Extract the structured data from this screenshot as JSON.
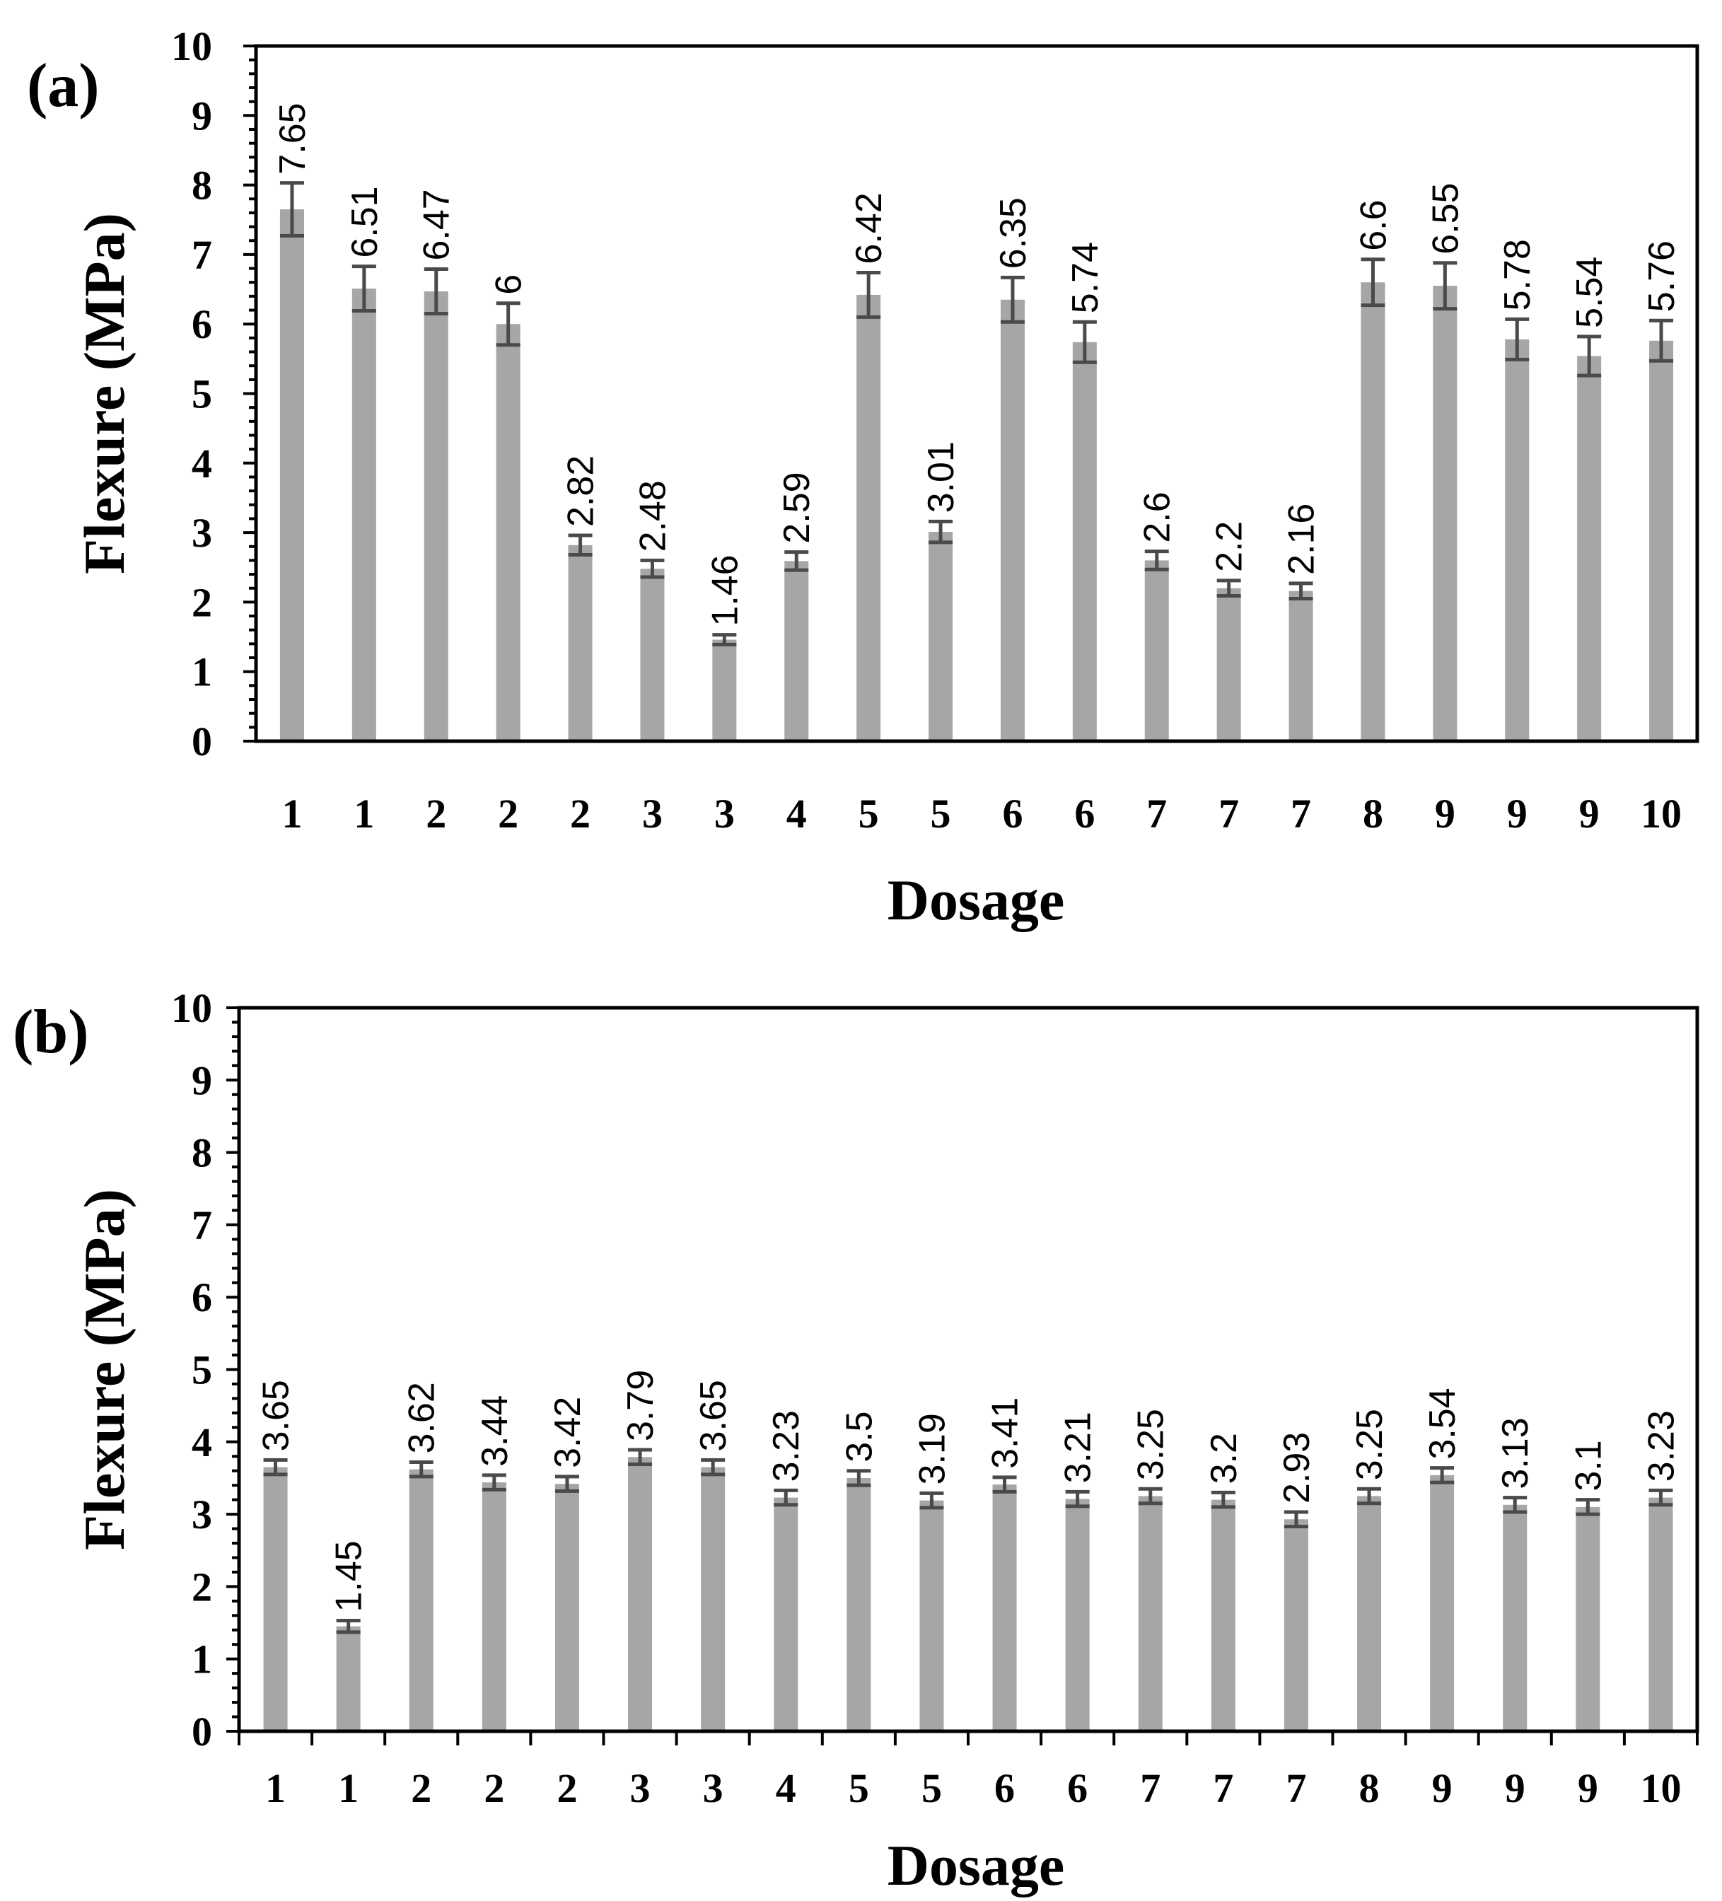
{
  "colors": {
    "bar": "#a6a6a6",
    "error_bar": "#4a4a4a",
    "axis": "#000000"
  },
  "chart_data": [
    {
      "panel_label": "(a)",
      "type": "bar",
      "xlabel": "Dosage",
      "ylabel": "Flexure (MPa)",
      "ylim": [
        0,
        10
      ],
      "yticks": [
        "0",
        "1",
        "2",
        "3",
        "4",
        "5",
        "6",
        "7",
        "8",
        "9",
        "10"
      ],
      "grid": false,
      "x_separator_ticks": false,
      "categories": [
        "1",
        "1",
        "2",
        "2",
        "2",
        "3",
        "3",
        "4",
        "5",
        "5",
        "6",
        "6",
        "7",
        "7",
        "7",
        "8",
        "9",
        "9",
        "9",
        "10"
      ],
      "values": [
        7.65,
        6.51,
        6.47,
        6,
        2.82,
        2.48,
        1.46,
        2.59,
        6.42,
        3.01,
        6.35,
        5.74,
        2.6,
        2.2,
        2.16,
        6.6,
        6.55,
        5.78,
        5.54,
        5.76
      ],
      "data_labels": [
        "7.65",
        "6.51",
        "6.47",
        "6",
        "2.82",
        "2.48",
        "1.46",
        "2.59",
        "6.42",
        "3.01",
        "6.35",
        "5.74",
        "2.6",
        "2.2",
        "2.16",
        "6.6",
        "6.55",
        "5.78",
        "5.54",
        "5.76"
      ],
      "errors": [
        0.38,
        0.32,
        0.32,
        0.3,
        0.14,
        0.12,
        0.07,
        0.13,
        0.32,
        0.15,
        0.32,
        0.29,
        0.13,
        0.11,
        0.11,
        0.33,
        0.33,
        0.29,
        0.28,
        0.29
      ]
    },
    {
      "panel_label": "(b)",
      "type": "bar",
      "xlabel": "Dosage",
      "ylabel": "Flexure (MPa)",
      "ylim": [
        0,
        10
      ],
      "yticks": [
        "0",
        "1",
        "2",
        "3",
        "4",
        "5",
        "6",
        "7",
        "8",
        "9",
        "10"
      ],
      "grid": false,
      "x_separator_ticks": true,
      "categories": [
        "1",
        "1",
        "2",
        "2",
        "2",
        "3",
        "3",
        "4",
        "5",
        "5",
        "6",
        "6",
        "7",
        "7",
        "7",
        "8",
        "9",
        "9",
        "9",
        "10"
      ],
      "values": [
        3.65,
        1.45,
        3.62,
        3.44,
        3.42,
        3.79,
        3.65,
        3.23,
        3.5,
        3.19,
        3.41,
        3.21,
        3.25,
        3.2,
        2.93,
        3.25,
        3.54,
        3.13,
        3.1,
        3.23
      ],
      "data_labels": [
        "3.65",
        "1.45",
        "3.62",
        "3.44",
        "3.42",
        "3.79",
        "3.65",
        "3.23",
        "3.5",
        "3.19",
        "3.41",
        "3.21",
        "3.25",
        "3.2",
        "2.93",
        "3.25",
        "3.54",
        "3.13",
        "3.1",
        "3.23"
      ],
      "errors": [
        0.1,
        0.08,
        0.1,
        0.1,
        0.1,
        0.1,
        0.1,
        0.1,
        0.1,
        0.1,
        0.1,
        0.1,
        0.1,
        0.1,
        0.1,
        0.1,
        0.1,
        0.1,
        0.1,
        0.1
      ]
    }
  ]
}
